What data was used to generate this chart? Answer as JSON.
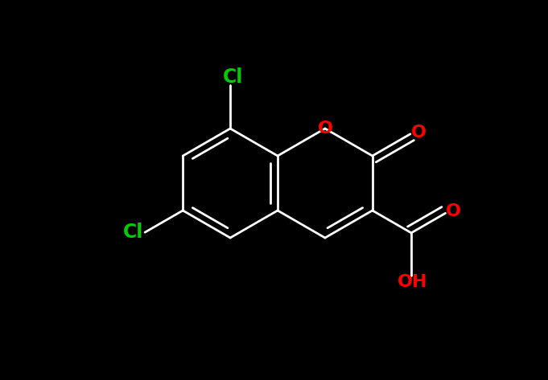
{
  "bg_color": "#000000",
  "bond_color": "#ffffff",
  "cl_color": "#00cc00",
  "o_color": "#ff0000",
  "oh_color": "#ff0000",
  "bond_width": 2.0,
  "font_size_atom": 16,
  "font_size_cl": 17,
  "font_size_oh": 16,
  "figsize": [
    6.81,
    4.73
  ],
  "dpi": 100,
  "xlim": [
    0,
    6.81
  ],
  "ylim": [
    0,
    4.73
  ]
}
